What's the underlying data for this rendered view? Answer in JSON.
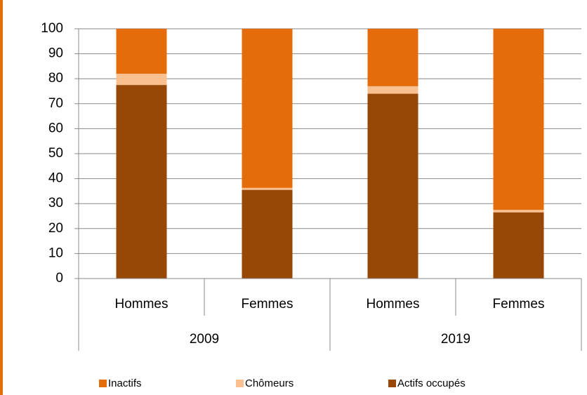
{
  "chart_data": {
    "type": "stacked_bar",
    "categories": [
      "Hommes",
      "Femmes",
      "Hommes",
      "Femmes"
    ],
    "groups": [
      "2009",
      "2019"
    ],
    "series": [
      {
        "name": "Inactifs",
        "color": "#e46c0a",
        "values": [
          18,
          63.7,
          23,
          72.5
        ]
      },
      {
        "name": "Chômeurs",
        "color": "#fac090",
        "values": [
          4.5,
          0.8,
          3,
          1
        ]
      },
      {
        "name": "Actifs occupés",
        "color": "#974706",
        "values": [
          77.5,
          35.5,
          74,
          26.5
        ]
      }
    ],
    "ylim": [
      0,
      100
    ],
    "yticks": [
      0,
      10,
      20,
      30,
      40,
      50,
      60,
      70,
      80,
      90,
      100
    ],
    "grid": true,
    "legend": "bottom"
  }
}
